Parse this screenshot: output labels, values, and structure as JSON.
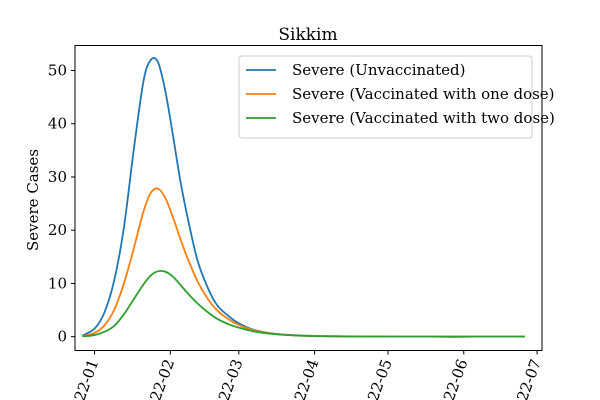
{
  "chart_data": {
    "type": "line",
    "title": "Sikkim",
    "xlabel": "",
    "ylabel": "Severe Cases",
    "x_axis_kind": "date",
    "xlim": [
      "2021-12-24",
      "2022-07-03"
    ],
    "ylim": [
      -2.6,
      54.7
    ],
    "x_ticks": [
      {
        "date": "2022-01-01",
        "label": "22-01"
      },
      {
        "date": "2022-02-01",
        "label": "22-02"
      },
      {
        "date": "2022-03-01",
        "label": "22-03"
      },
      {
        "date": "2022-04-01",
        "label": "22-04"
      },
      {
        "date": "2022-05-01",
        "label": "22-05"
      },
      {
        "date": "2022-06-01",
        "label": "22-06"
      },
      {
        "date": "2022-07-01",
        "label": "22-07"
      }
    ],
    "y_ticks": [
      0,
      10,
      20,
      30,
      40,
      50
    ],
    "grid": false,
    "legend_position": "top-right",
    "x": [
      "2021-12-27",
      "2022-01-01",
      "2022-01-05",
      "2022-01-09",
      "2022-01-13",
      "2022-01-17",
      "2022-01-21",
      "2022-01-24",
      "2022-01-27",
      "2022-01-30",
      "2022-02-02",
      "2022-02-05",
      "2022-02-08",
      "2022-02-12",
      "2022-02-16",
      "2022-02-20",
      "2022-02-25",
      "2022-03-01",
      "2022-03-07",
      "2022-03-15",
      "2022-03-25",
      "2022-04-05",
      "2022-04-20",
      "2022-05-05",
      "2022-05-20",
      "2022-06-05",
      "2022-06-20",
      "2022-06-26"
    ],
    "series": [
      {
        "name": "Severe (Unvaccinated)",
        "color": "#1f77b4",
        "values": [
          0.2,
          1.5,
          4.5,
          10.5,
          20.5,
          35,
          48,
          52,
          51.5,
          46,
          38,
          29.5,
          22.5,
          14.5,
          9.5,
          6,
          3.8,
          2.5,
          1.3,
          0.6,
          0.25,
          0.1,
          0.03,
          0.01,
          0,
          0,
          0,
          0
        ]
      },
      {
        "name": "Severe (Vaccinated with one dose)",
        "color": "#ff7f0e",
        "values": [
          0.1,
          0.7,
          2.1,
          5,
          10,
          16.5,
          23.5,
          27,
          27.8,
          26,
          22.5,
          18.5,
          14.8,
          10.5,
          7.3,
          5,
          3.2,
          2.2,
          1.2,
          0.55,
          0.22,
          0.09,
          0.03,
          0.01,
          0,
          0,
          0,
          0
        ]
      },
      {
        "name": "Severe (Vaccinated with two dose)",
        "color": "#2ca02c",
        "values": [
          0.05,
          0.3,
          0.9,
          2,
          4.2,
          7,
          9.8,
          11.5,
          12.3,
          12.2,
          11.3,
          9.8,
          8.2,
          6.3,
          4.7,
          3.4,
          2.3,
          1.7,
          1,
          0.5,
          0.2,
          0.08,
          0.03,
          0.01,
          0,
          0,
          0,
          0
        ]
      }
    ]
  }
}
